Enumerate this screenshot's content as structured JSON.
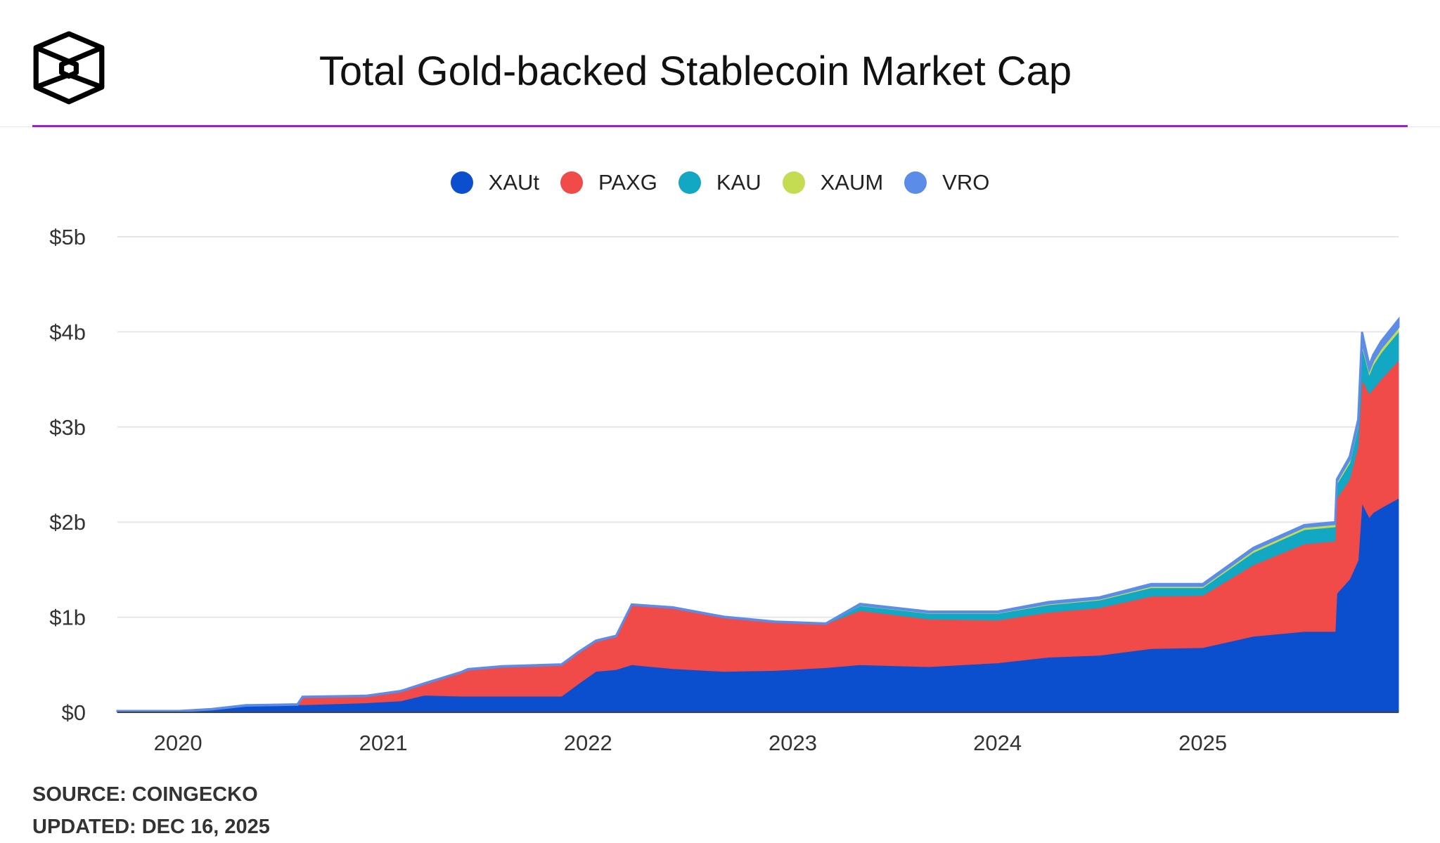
{
  "header": {
    "title": "Total Gold-backed Stablecoin Market Cap",
    "accent_color": "#9b1fd9"
  },
  "footer": {
    "source": "SOURCE: COINGECKO",
    "updated": "UPDATED: DEC 16, 2025"
  },
  "chart_data": {
    "type": "area",
    "stacked": true,
    "title": "Total Gold-backed Stablecoin Market Cap",
    "xlabel": "",
    "ylabel": "",
    "ylim": [
      0,
      5
    ],
    "xlim": [
      "2019-09-15",
      "2025-12-16"
    ],
    "unit": "$b",
    "grid": true,
    "legend_position": "top",
    "y_ticks": [
      {
        "v": 0,
        "label": "$0"
      },
      {
        "v": 1,
        "label": "$1b"
      },
      {
        "v": 2,
        "label": "$2b"
      },
      {
        "v": 3,
        "label": "$3b"
      },
      {
        "v": 4,
        "label": "$4b"
      },
      {
        "v": 5,
        "label": "$5b"
      }
    ],
    "x_ticks": [
      {
        "date": "2020-01-01",
        "label": "2020"
      },
      {
        "date": "2021-01-01",
        "label": "2021"
      },
      {
        "date": "2022-01-01",
        "label": "2022"
      },
      {
        "date": "2023-01-01",
        "label": "2023"
      },
      {
        "date": "2024-01-01",
        "label": "2024"
      },
      {
        "date": "2025-01-01",
        "label": "2025"
      }
    ],
    "dates": [
      "2019-09-15",
      "2020-01-01",
      "2020-03-01",
      "2020-05-01",
      "2020-08-01",
      "2020-08-10",
      "2020-12-01",
      "2021-02-01",
      "2021-03-15",
      "2021-05-20",
      "2021-06-01",
      "2021-08-01",
      "2021-11-15",
      "2021-12-15",
      "2022-01-15",
      "2022-02-20",
      "2022-03-20",
      "2022-06-01",
      "2022-09-01",
      "2022-12-01",
      "2023-03-01",
      "2023-05-01",
      "2023-09-01",
      "2024-01-01",
      "2024-04-01",
      "2024-07-01",
      "2024-10-01",
      "2025-01-01",
      "2025-04-01",
      "2025-07-01",
      "2025-08-25",
      "2025-08-28",
      "2025-09-20",
      "2025-10-05",
      "2025-10-12",
      "2025-10-25",
      "2025-11-01",
      "2025-11-15",
      "2025-12-16"
    ],
    "series": [
      {
        "name": "XAUt",
        "color": "#0b4fcf",
        "values": [
          0.01,
          0.01,
          0.03,
          0.07,
          0.08,
          0.08,
          0.1,
          0.12,
          0.18,
          0.17,
          0.17,
          0.17,
          0.17,
          0.3,
          0.43,
          0.45,
          0.5,
          0.46,
          0.43,
          0.44,
          0.47,
          0.5,
          0.48,
          0.52,
          0.58,
          0.6,
          0.67,
          0.68,
          0.8,
          0.85,
          0.85,
          1.25,
          1.4,
          1.6,
          2.2,
          2.05,
          2.1,
          2.15,
          2.25
        ]
      },
      {
        "name": "PAXG",
        "color": "#f04b48",
        "values": [
          0,
          0,
          0,
          0,
          0,
          0.08,
          0.07,
          0.1,
          0.12,
          0.25,
          0.28,
          0.31,
          0.33,
          0.33,
          0.32,
          0.35,
          0.63,
          0.64,
          0.57,
          0.51,
          0.46,
          0.57,
          0.5,
          0.45,
          0.47,
          0.5,
          0.55,
          0.55,
          0.75,
          0.92,
          0.95,
          1.0,
          1.05,
          1.2,
          1.3,
          1.3,
          1.3,
          1.35,
          1.45
        ]
      },
      {
        "name": "KAU",
        "color": "#12a7c2",
        "values": [
          0,
          0,
          0,
          0,
          0,
          0,
          0,
          0,
          0,
          0,
          0,
          0,
          0,
          0,
          0,
          0,
          0,
          0,
          0,
          0,
          0,
          0.05,
          0.06,
          0.07,
          0.08,
          0.08,
          0.09,
          0.08,
          0.13,
          0.15,
          0.15,
          0.15,
          0.17,
          0.2,
          0.35,
          0.2,
          0.25,
          0.28,
          0.3
        ]
      },
      {
        "name": "XAUM",
        "color": "#c4dc52",
        "values": [
          0,
          0,
          0,
          0,
          0,
          0,
          0,
          0,
          0,
          0,
          0,
          0,
          0,
          0,
          0,
          0,
          0,
          0,
          0,
          0,
          0,
          0.01,
          0.01,
          0.01,
          0.015,
          0.015,
          0.02,
          0.02,
          0.03,
          0.03,
          0.03,
          0.03,
          0.04,
          0.04,
          0.05,
          0.05,
          0.05,
          0.05,
          0.05
        ]
      },
      {
        "name": "VRO",
        "color": "#5b8de8",
        "values": [
          0.005,
          0.005,
          0.005,
          0.005,
          0.005,
          0.005,
          0.005,
          0.005,
          0.005,
          0.005,
          0.005,
          0.005,
          0.005,
          0.005,
          0.005,
          0.005,
          0.005,
          0.005,
          0.005,
          0.005,
          0.005,
          0.01,
          0.01,
          0.01,
          0.015,
          0.015,
          0.02,
          0.02,
          0.02,
          0.02,
          0.02,
          0.02,
          0.03,
          0.04,
          0.1,
          0.05,
          0.06,
          0.07,
          0.08
        ]
      }
    ]
  }
}
